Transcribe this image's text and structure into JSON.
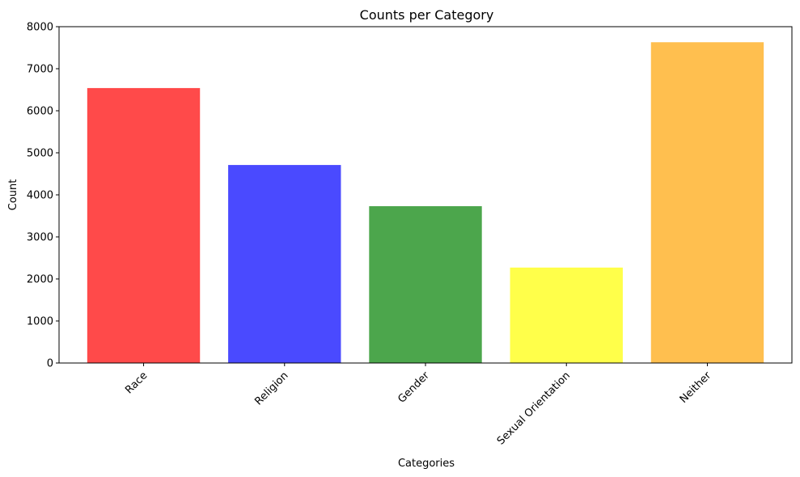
{
  "chart_data": {
    "type": "bar",
    "title": "Counts per Category",
    "xlabel": "Categories",
    "ylabel": "Count",
    "categories": [
      "Race",
      "Religion",
      "Gender",
      "Sexual Orientation",
      "Neither"
    ],
    "values": [
      6540,
      4710,
      3730,
      2270,
      7630
    ],
    "colors": [
      "#ff4a4a",
      "#4a4aff",
      "#4ca64c",
      "#ffff4a",
      "#ffbf4f"
    ],
    "ylim": [
      0,
      8000
    ],
    "yticks": [
      0,
      1000,
      2000,
      3000,
      4000,
      5000,
      6000,
      7000,
      8000
    ],
    "grid": false,
    "legend": "none"
  }
}
